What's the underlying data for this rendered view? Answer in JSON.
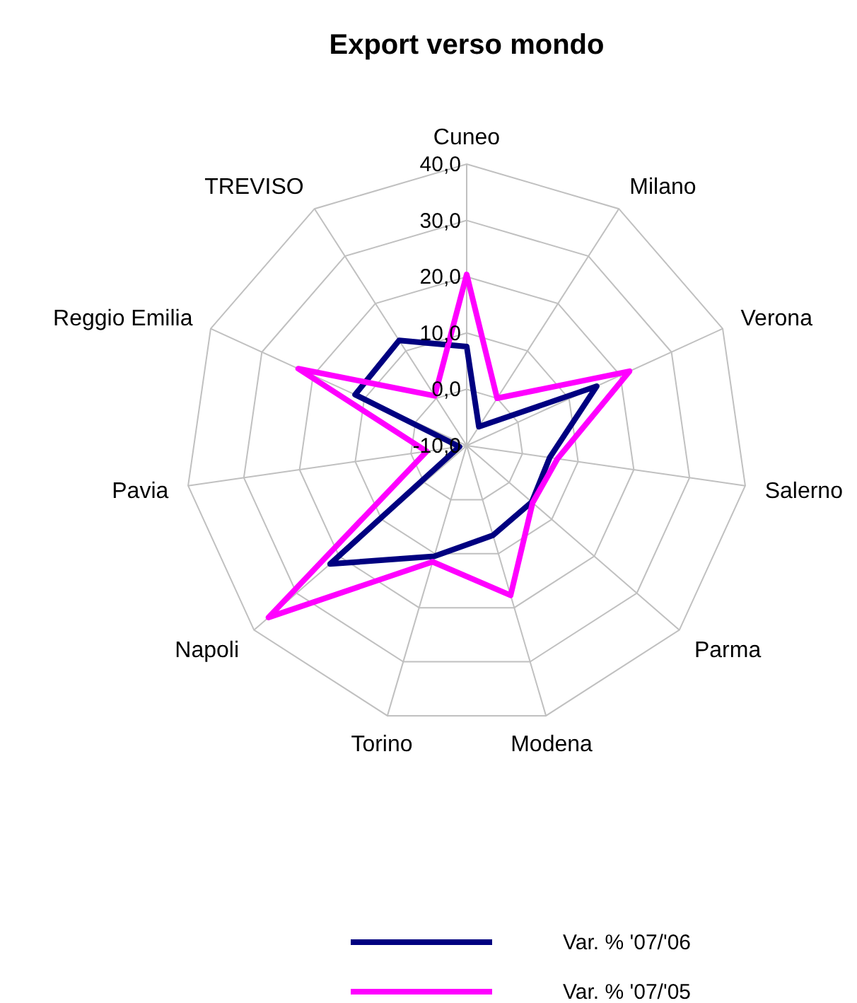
{
  "chart_data": {
    "type": "radar",
    "title": "Export verso mondo",
    "categories": [
      "Cuneo",
      "Milano",
      "Verona",
      "Salerno",
      "Parma",
      "Modena",
      "Torino",
      "Napoli",
      "Pavia",
      "Reggio Emilia",
      "TREVISO"
    ],
    "series": [
      {
        "name": "Var. % '07/'06",
        "color": "#000080",
        "values": [
          7.6,
          -6,
          15.4,
          4.9,
          5.3,
          6.6,
          10.5,
          22.1,
          -8.7,
          11.8,
          12.2
        ]
      },
      {
        "name": "Var. % '07/'05",
        "color": "#ff00ff",
        "values": [
          20.4,
          0,
          21.8,
          6.3,
          5.5,
          17.7,
          11.5,
          36.6,
          -2.8,
          22.9,
          0.5
        ]
      }
    ],
    "ylim": [
      -10,
      40
    ],
    "yticks": [
      {
        "value": -10,
        "label": "-10,0"
      },
      {
        "value": 0,
        "label": "0,0"
      },
      {
        "value": 10,
        "label": "10,0"
      },
      {
        "value": 20,
        "label": "20,0"
      },
      {
        "value": 30,
        "label": "30,0"
      },
      {
        "value": 40,
        "label": "40,0"
      }
    ],
    "grid": true,
    "legend": "bottom",
    "line_style": "solid"
  }
}
